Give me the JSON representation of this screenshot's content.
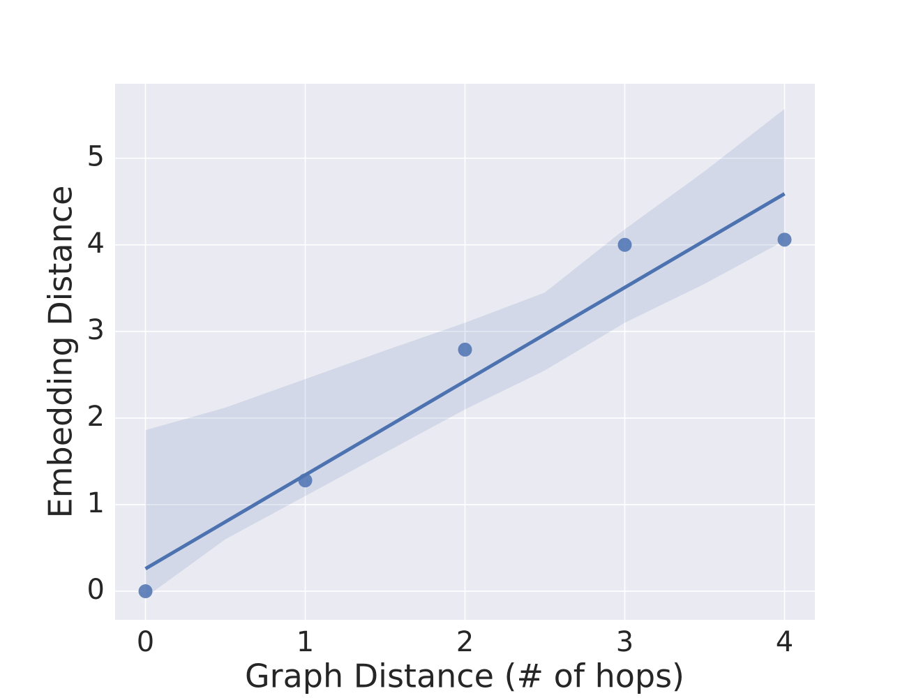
{
  "chart_data": {
    "type": "regplot",
    "xlabel": "Graph Distance (# of hops)",
    "ylabel": "Embedding Distance",
    "xlim": [
      -0.19,
      4.19
    ],
    "ylim": [
      -0.33,
      5.86
    ],
    "xticks": [
      0,
      1,
      2,
      3,
      4
    ],
    "yticks": [
      0,
      1,
      2,
      3,
      4,
      5
    ],
    "grid": true,
    "background": "#eaeaf2",
    "color": "#4c72b0",
    "points": {
      "x": [
        0,
        1,
        2,
        3,
        4
      ],
      "values": [
        0,
        1.28,
        2.79,
        4.0,
        4.06
      ]
    },
    "fit": {
      "x": [
        0,
        4
      ],
      "values": [
        0.26,
        4.59
      ]
    },
    "band": {
      "x": [
        0,
        0.5,
        1,
        1.5,
        2,
        2.5,
        3,
        3.5,
        4
      ],
      "upper": [
        1.86,
        2.12,
        2.45,
        2.78,
        3.1,
        3.45,
        4.18,
        4.85,
        5.57
      ],
      "lower": [
        -0.07,
        0.6,
        1.1,
        1.6,
        2.1,
        2.55,
        3.1,
        3.55,
        4.05
      ]
    }
  }
}
